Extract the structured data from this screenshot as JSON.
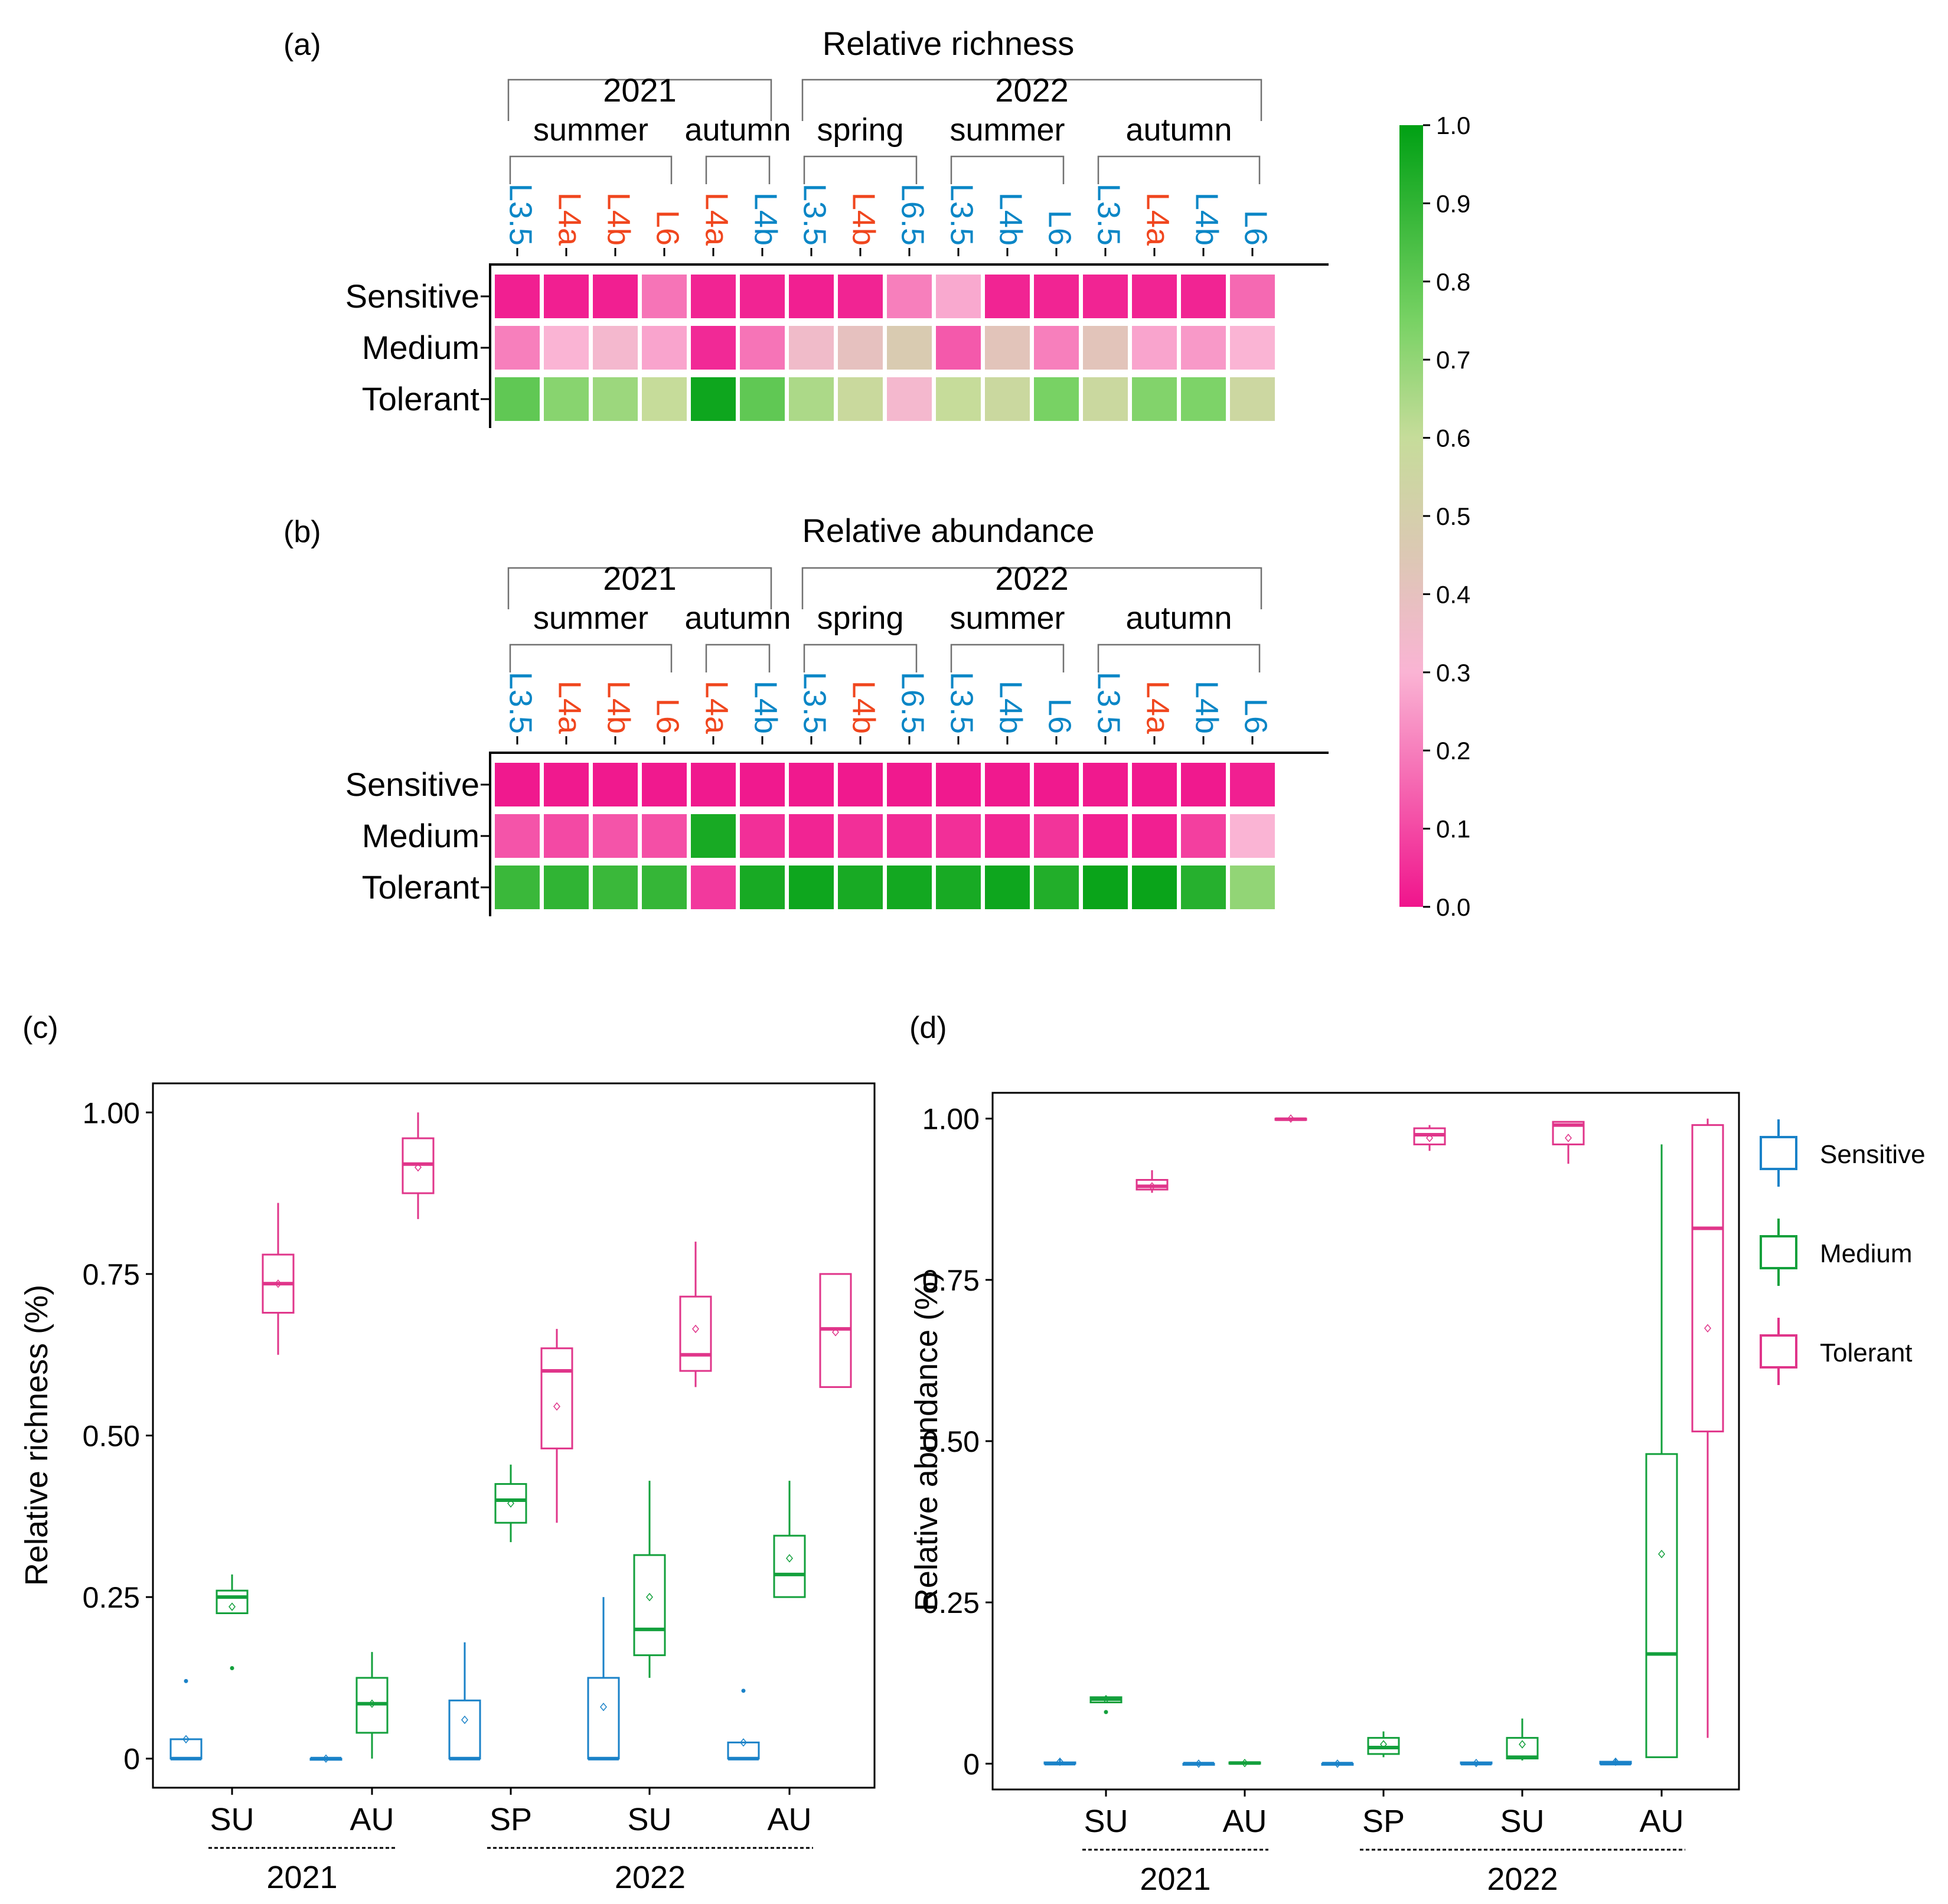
{
  "colors": {
    "sensitive": "#1a82c8",
    "medium": "#13a03c",
    "tolerant": "#e0358a",
    "site_blue": "#0a86c6",
    "site_red": "#f0461e",
    "axis": "#000000",
    "bracket": "#707070",
    "scale_low": "#f0148c",
    "scale_mid": "#dcc8b4",
    "scale_high": "#00a014"
  },
  "colorbar": {
    "ticks": [
      "1.0",
      "0.9",
      "0.8",
      "0.7",
      "0.6",
      "0.5",
      "0.4",
      "0.3",
      "0.2",
      "0.1",
      "0.0"
    ],
    "range": [
      0,
      1
    ]
  },
  "columns": [
    {
      "label": "L3.5",
      "color": "blue"
    },
    {
      "label": "L4a",
      "color": "red"
    },
    {
      "label": "L4b",
      "color": "red"
    },
    {
      "label": "L6",
      "color": "red"
    },
    {
      "label": "L4a",
      "color": "red"
    },
    {
      "label": "L4b",
      "color": "blue"
    },
    {
      "label": "L3.5",
      "color": "blue"
    },
    {
      "label": "L4b",
      "color": "red"
    },
    {
      "label": "L6.5",
      "color": "blue"
    },
    {
      "label": "L3.5",
      "color": "blue"
    },
    {
      "label": "L4b",
      "color": "blue"
    },
    {
      "label": "L6",
      "color": "blue"
    },
    {
      "label": "L3.5",
      "color": "blue"
    },
    {
      "label": "L4a",
      "color": "red"
    },
    {
      "label": "L4b",
      "color": "blue"
    },
    {
      "label": "L6",
      "color": "blue"
    }
  ],
  "year_groups": [
    {
      "label": "2021",
      "first_col": 0,
      "last_col": 5
    },
    {
      "label": "2022",
      "first_col": 6,
      "last_col": 15
    }
  ],
  "season_groups": [
    {
      "label": "summer",
      "first_col": 0,
      "last_col": 3
    },
    {
      "label": "autumn",
      "first_col": 4,
      "last_col": 5
    },
    {
      "label": "spring",
      "first_col": 6,
      "last_col": 8
    },
    {
      "label": "summer",
      "first_col": 9,
      "last_col": 11
    },
    {
      "label": "autumn",
      "first_col": 12,
      "last_col": 15
    }
  ],
  "row_labels": [
    "Sensitive",
    "Medium",
    "Tolerant"
  ],
  "chart_data": [
    {
      "panel": "(a)",
      "type": "heatmap",
      "title": "Relative richness",
      "rows": [
        "Sensitive",
        "Medium",
        "Tolerant"
      ],
      "values": [
        [
          0.02,
          0.02,
          0.02,
          0.18,
          0.03,
          0.03,
          0.02,
          0.03,
          0.2,
          0.28,
          0.03,
          0.03,
          0.03,
          0.03,
          0.03,
          0.16
        ],
        [
          0.2,
          0.3,
          0.33,
          0.27,
          0.04,
          0.18,
          0.35,
          0.4,
          0.47,
          0.13,
          0.42,
          0.2,
          0.42,
          0.27,
          0.25,
          0.3
        ],
        [
          0.8,
          0.72,
          0.68,
          0.6,
          0.97,
          0.8,
          0.65,
          0.58,
          0.33,
          0.6,
          0.57,
          0.75,
          0.57,
          0.73,
          0.74,
          0.56
        ]
      ]
    },
    {
      "panel": "(b)",
      "type": "heatmap",
      "title": "Relative abundance",
      "rows": [
        "Sensitive",
        "Medium",
        "Tolerant"
      ],
      "values": [
        [
          0.01,
          0.01,
          0.01,
          0.01,
          0.01,
          0.01,
          0.01,
          0.01,
          0.01,
          0.01,
          0.01,
          0.01,
          0.01,
          0.01,
          0.01,
          0.02
        ],
        [
          0.12,
          0.1,
          0.12,
          0.11,
          0.95,
          0.05,
          0.03,
          0.05,
          0.04,
          0.05,
          0.03,
          0.06,
          0.02,
          0.02,
          0.08,
          0.3
        ],
        [
          0.88,
          0.9,
          0.88,
          0.89,
          0.07,
          0.95,
          0.97,
          0.95,
          0.96,
          0.95,
          0.97,
          0.93,
          0.98,
          0.98,
          0.92,
          0.7
        ]
      ]
    },
    {
      "panel": "(c)",
      "type": "box",
      "ylabel": "Relative richness (%)",
      "yticks": [
        "0",
        "0.25",
        "0.50",
        "0.75",
        "1.00"
      ],
      "ylim": [
        -0.045,
        1.045
      ],
      "groups": [
        "SU",
        "AU",
        "SP",
        "SU",
        "AU"
      ],
      "years": [
        {
          "label": "2021",
          "first_group": 0,
          "last_group": 1
        },
        {
          "label": "2022",
          "first_group": 2,
          "last_group": 4
        }
      ],
      "series": [
        {
          "name": "Sensitive",
          "boxes": [
            {
              "q1": 0,
              "med": 0,
              "q3": 0.03,
              "wlo": 0,
              "whi": 0.03,
              "mean": 0.03,
              "out": [
                0.12
              ]
            },
            {
              "q1": 0,
              "med": 0,
              "q3": 0.0,
              "wlo": 0,
              "whi": 0.0,
              "mean": 0.0,
              "out": []
            },
            {
              "q1": 0,
              "med": 0,
              "q3": 0.09,
              "wlo": 0,
              "whi": 0.18,
              "mean": 0.06,
              "out": []
            },
            {
              "q1": 0,
              "med": 0,
              "q3": 0.125,
              "wlo": 0,
              "whi": 0.25,
              "mean": 0.08,
              "out": []
            },
            {
              "q1": 0,
              "med": 0,
              "q3": 0.025,
              "wlo": 0,
              "whi": 0.025,
              "mean": 0.025,
              "out": [
                0.105
              ]
            }
          ]
        },
        {
          "name": "Medium",
          "boxes": [
            {
              "q1": 0.225,
              "med": 0.25,
              "q3": 0.26,
              "wlo": 0.225,
              "whi": 0.285,
              "mean": 0.235,
              "out": [
                0.14
              ]
            },
            {
              "q1": 0.04,
              "med": 0.085,
              "q3": 0.125,
              "wlo": 0.0,
              "whi": 0.165,
              "mean": 0.085,
              "out": []
            },
            {
              "q1": 0.365,
              "med": 0.4,
              "q3": 0.425,
              "wlo": 0.335,
              "whi": 0.455,
              "mean": 0.395,
              "out": []
            },
            {
              "q1": 0.16,
              "med": 0.2,
              "q3": 0.315,
              "wlo": 0.125,
              "whi": 0.43,
              "mean": 0.25,
              "out": []
            },
            {
              "q1": 0.25,
              "med": 0.285,
              "q3": 0.345,
              "wlo": 0.25,
              "whi": 0.43,
              "mean": 0.31,
              "out": []
            }
          ]
        },
        {
          "name": "Tolerant",
          "boxes": [
            {
              "q1": 0.69,
              "med": 0.735,
              "q3": 0.78,
              "wlo": 0.625,
              "whi": 0.86,
              "mean": 0.735,
              "out": []
            },
            {
              "q1": 0.875,
              "med": 0.92,
              "q3": 0.96,
              "wlo": 0.835,
              "whi": 1.0,
              "mean": 0.915,
              "out": []
            },
            {
              "q1": 0.48,
              "med": 0.6,
              "q3": 0.635,
              "wlo": 0.365,
              "whi": 0.665,
              "mean": 0.545,
              "out": []
            },
            {
              "q1": 0.6,
              "med": 0.625,
              "q3": 0.715,
              "wlo": 0.575,
              "whi": 0.8,
              "mean": 0.665,
              "out": []
            },
            {
              "q1": 0.575,
              "med": 0.665,
              "q3": 0.75,
              "wlo": 0.575,
              "whi": 0.75,
              "mean": 0.66,
              "out": []
            }
          ]
        }
      ]
    },
    {
      "panel": "(d)",
      "type": "box",
      "ylabel": "Relative abundance (%)",
      "yticks": [
        "0",
        "0.25",
        "0.50",
        "0.75",
        "1.00"
      ],
      "ylim": [
        -0.04,
        1.04
      ],
      "groups": [
        "SU",
        "AU",
        "SP",
        "SU",
        "AU"
      ],
      "years": [
        {
          "label": "2021",
          "first_group": 0,
          "last_group": 1
        },
        {
          "label": "2022",
          "first_group": 2,
          "last_group": 4
        }
      ],
      "series": [
        {
          "name": "Sensitive",
          "boxes": [
            {
              "q1": 0,
              "med": 0,
              "q3": 0.002,
              "wlo": 0,
              "whi": 0.007,
              "mean": 0.003,
              "out": []
            },
            {
              "q1": 0,
              "med": 0,
              "q3": 0.0,
              "wlo": 0,
              "whi": 0.0,
              "mean": 0.0,
              "out": []
            },
            {
              "q1": 0,
              "med": 0,
              "q3": 0.0,
              "wlo": 0,
              "whi": 0.0,
              "mean": 0.0,
              "out": []
            },
            {
              "q1": 0,
              "med": 0,
              "q3": 0.002,
              "wlo": 0,
              "whi": 0.002,
              "mean": 0.001,
              "out": []
            },
            {
              "q1": 0,
              "med": 0,
              "q3": 0.003,
              "wlo": 0,
              "whi": 0.008,
              "mean": 0.003,
              "out": []
            }
          ]
        },
        {
          "name": "Medium",
          "boxes": [
            {
              "q1": 0.095,
              "med": 0.1,
              "q3": 0.103,
              "wlo": 0.095,
              "whi": 0.103,
              "mean": 0.1,
              "out": [
                0.08
              ]
            },
            {
              "q1": 0,
              "med": 0.001,
              "q3": 0.002,
              "wlo": 0,
              "whi": 0.002,
              "mean": 0.001,
              "out": []
            },
            {
              "q1": 0.015,
              "med": 0.025,
              "q3": 0.04,
              "wlo": 0.01,
              "whi": 0.05,
              "mean": 0.03,
              "out": []
            },
            {
              "q1": 0.008,
              "med": 0.01,
              "q3": 0.04,
              "wlo": 0.005,
              "whi": 0.07,
              "mean": 0.03,
              "out": []
            },
            {
              "q1": 0.01,
              "med": 0.17,
              "q3": 0.48,
              "wlo": 0.01,
              "whi": 0.96,
              "mean": 0.325,
              "out": []
            }
          ]
        },
        {
          "name": "Tolerant",
          "boxes": [
            {
              "q1": 0.89,
              "med": 0.895,
              "q3": 0.905,
              "wlo": 0.885,
              "whi": 0.92,
              "mean": 0.895,
              "out": []
            },
            {
              "q1": 0.998,
              "med": 0.999,
              "q3": 1.0,
              "wlo": 0.998,
              "whi": 1.0,
              "mean": 1.0,
              "out": []
            },
            {
              "q1": 0.96,
              "med": 0.975,
              "q3": 0.985,
              "wlo": 0.95,
              "whi": 0.99,
              "mean": 0.97,
              "out": []
            },
            {
              "q1": 0.96,
              "med": 0.99,
              "q3": 0.995,
              "wlo": 0.93,
              "whi": 0.995,
              "mean": 0.97,
              "out": []
            },
            {
              "q1": 0.515,
              "med": 0.83,
              "q3": 0.99,
              "wlo": 0.04,
              "whi": 1.0,
              "mean": 0.675,
              "out": []
            }
          ]
        }
      ]
    }
  ],
  "legend": {
    "position": "right",
    "items": [
      "Sensitive",
      "Medium",
      "Tolerant"
    ]
  }
}
